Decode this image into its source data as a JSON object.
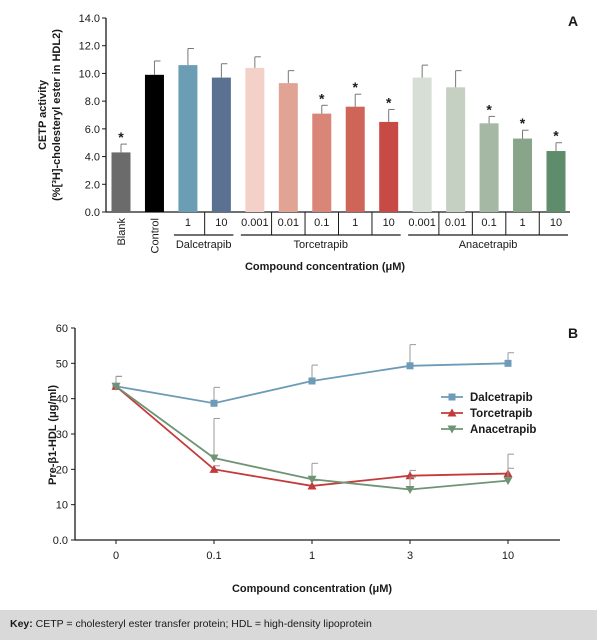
{
  "chart_data": [
    {
      "type": "bar",
      "panel_label": "A",
      "ylabel_line1": "CETP activity",
      "ylabel_line2": "(%[³H]-cholesteryl ester in HDL2)",
      "xlabel": "Compound concentration (μM)",
      "ylim": [
        0,
        14
      ],
      "yticks": [
        "0.0",
        "2.0",
        "4.0",
        "6.0",
        "8.0",
        "10.0",
        "12.0",
        "14.0"
      ],
      "bars": [
        {
          "label": "Blank",
          "value": 4.3,
          "error": 0.6,
          "star": true,
          "color": "#6b6b6b"
        },
        {
          "label": "Control",
          "value": 9.9,
          "error": 1.0,
          "star": false,
          "color": "#000000"
        },
        {
          "label": "1",
          "value": 10.6,
          "error": 1.2,
          "star": false,
          "color": "#6b9db5"
        },
        {
          "label": "10",
          "value": 9.7,
          "error": 1.0,
          "star": false,
          "color": "#5a7191"
        },
        {
          "label": "0.001",
          "value": 10.4,
          "error": 0.8,
          "star": false,
          "color": "#f3d1c8"
        },
        {
          "label": "0.01",
          "value": 9.3,
          "error": 0.9,
          "star": false,
          "color": "#e1a394"
        },
        {
          "label": "0.1",
          "value": 7.1,
          "error": 0.6,
          "star": true,
          "color": "#d98577"
        },
        {
          "label": "1",
          "value": 7.6,
          "error": 0.9,
          "star": true,
          "color": "#cf6459"
        },
        {
          "label": "10",
          "value": 6.5,
          "error": 0.9,
          "star": true,
          "color": "#c84a44"
        },
        {
          "label": "0.001",
          "value": 9.7,
          "error": 0.9,
          "star": false,
          "color": "#d6ded6"
        },
        {
          "label": "0.01",
          "value": 9.0,
          "error": 1.2,
          "star": false,
          "color": "#c5d0c3"
        },
        {
          "label": "0.1",
          "value": 6.4,
          "error": 0.5,
          "star": true,
          "color": "#a5b8a4"
        },
        {
          "label": "1",
          "value": 5.3,
          "error": 0.6,
          "star": true,
          "color": "#88a58a"
        },
        {
          "label": "10",
          "value": 4.4,
          "error": 0.6,
          "star": true,
          "color": "#5f8d6b"
        }
      ],
      "groups": [
        {
          "label": "Dalcetrapib",
          "from": 2,
          "to": 3
        },
        {
          "label": "Torcetrapib",
          "from": 4,
          "to": 8
        },
        {
          "label": "Anacetrapib",
          "from": 9,
          "to": 13
        }
      ],
      "star_symbol": "*"
    },
    {
      "type": "line",
      "panel_label": "B",
      "ylabel": "Pre-β1-HDL (μg/ml)",
      "xlabel": "Compound concentration (μM)",
      "x": [
        "0",
        "0.1",
        "1",
        "3",
        "10"
      ],
      "ylim": [
        0,
        60
      ],
      "yticks": [
        "0.0",
        "10",
        "20",
        "30",
        "40",
        "50",
        "60"
      ],
      "series": [
        {
          "name": "Dalcetrapib",
          "marker": "square",
          "color": "#6e9cb8",
          "values": [
            43.5,
            38.7,
            45.0,
            49.3,
            50.0
          ],
          "errors": [
            2.8,
            4.5,
            4.5,
            6.0,
            3.0
          ]
        },
        {
          "name": "Torcetrapib",
          "marker": "triangle-up",
          "color": "#c43a3a",
          "values": [
            43.5,
            20.0,
            15.3,
            18.2,
            18.8
          ],
          "errors": [
            2.8,
            1.0,
            1.5,
            1.5,
            5.5
          ]
        },
        {
          "name": "Anacetrapib",
          "marker": "triangle-down",
          "color": "#6f9475",
          "values": [
            43.5,
            23.2,
            17.2,
            14.3,
            16.8
          ],
          "errors": [
            2.8,
            11.2,
            4.5,
            3.5,
            3.5
          ]
        }
      ],
      "legend_position": "right"
    }
  ],
  "key": {
    "prefix": "Key:",
    "text": " CETP = cholesteryl ester transfer protein; HDL = high-density lipoprotein"
  }
}
